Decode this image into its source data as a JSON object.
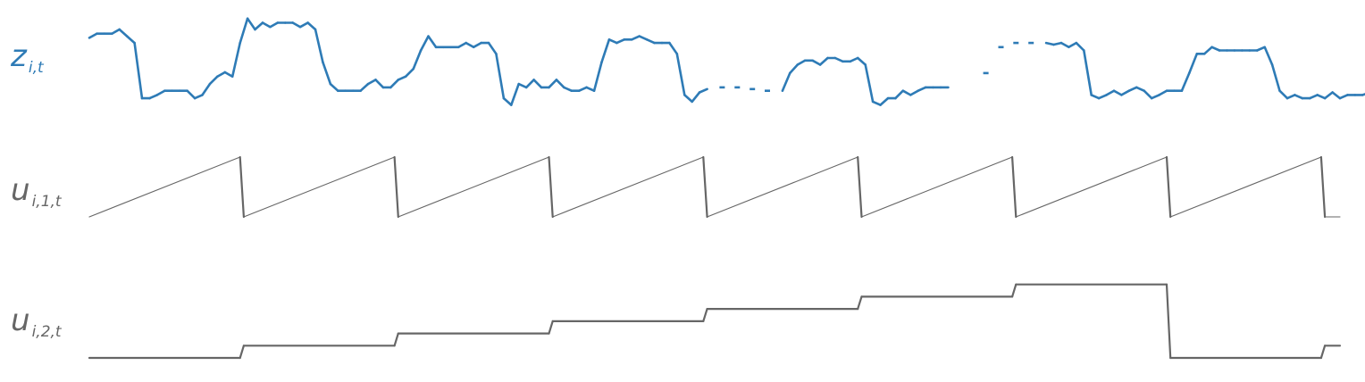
{
  "chart_data": [
    {
      "type": "line",
      "title": "",
      "xlabel": "",
      "ylabel": "",
      "grid": false,
      "legend": "none",
      "axes_visible": false,
      "color": "#2e7bb6",
      "label": {
        "main": "z",
        "sub": "i,t"
      },
      "xlim": [
        0,
        166
      ],
      "ylim": [
        0,
        1
      ],
      "y": [
        0.74,
        0.79,
        0.79,
        0.79,
        0.84,
        0.76,
        0.68,
        0.02,
        0.02,
        0.06,
        0.11,
        0.11,
        0.11,
        0.11,
        0.02,
        0.06,
        0.19,
        0.28,
        0.33,
        0.28,
        0.68,
        0.97,
        0.84,
        0.92,
        0.87,
        0.92,
        0.92,
        0.92,
        0.87,
        0.92,
        0.84,
        0.45,
        0.19,
        0.11,
        0.11,
        0.11,
        0.11,
        0.19,
        0.24,
        0.15,
        0.15,
        0.24,
        0.28,
        0.37,
        0.59,
        0.76,
        0.63,
        0.63,
        0.63,
        0.63,
        0.68,
        0.63,
        0.68,
        0.68,
        0.55,
        0.02,
        -0.06,
        0.19,
        0.15,
        0.24,
        0.15,
        0.15,
        0.24,
        0.15,
        0.11,
        0.11,
        0.15,
        0.11,
        0.45,
        0.72,
        0.68,
        0.72,
        0.72,
        0.76,
        0.72,
        0.68,
        0.68,
        0.68,
        0.55,
        0.06,
        -0.02,
        0.09,
        0.13,
        null,
        0.15,
        null,
        0.15,
        null,
        0.13,
        null,
        0.11,
        null,
        0.11,
        0.32,
        0.42,
        0.47,
        0.47,
        0.42,
        0.5,
        0.5,
        0.46,
        0.46,
        0.5,
        0.42,
        -0.02,
        -0.06,
        0.02,
        0.02,
        0.11,
        0.06,
        0.11,
        0.15,
        0.15,
        0.15,
        0.15,
        null,
        null,
        null,
        null,
        0.32,
        null,
        0.63,
        null,
        0.68,
        null,
        0.68,
        null,
        0.68,
        0.66,
        0.68,
        0.63,
        0.68,
        0.59,
        0.06,
        0.02,
        0.06,
        0.11,
        0.06,
        0.11,
        0.15,
        0.11,
        0.02,
        0.06,
        0.11,
        0.11,
        0.11,
        0.32,
        0.55,
        0.55,
        0.63,
        0.59,
        0.59,
        0.59,
        0.59,
        0.59,
        0.59,
        0.63,
        0.42,
        0.11,
        0.02,
        0.06,
        0.02,
        0.02,
        0.06,
        0.02,
        0.09,
        0.02,
        0.06,
        0.06,
        0.06,
        0.09,
        0.42,
        0.63,
        0.55,
        0.58,
        0.66,
        0.55,
        0.63,
        0.55,
        0.66,
        0.59,
        0.38,
        0.03,
        0.02,
        0.08,
        0.16,
        0.19,
        0.12,
        0.19,
        0.19,
        0.15,
        0.08,
        0.16,
        0.33,
        0.15,
        0.33,
        0.66,
        0.58,
        0.58,
        0.62
      ]
    },
    {
      "type": "line",
      "title": "",
      "xlabel": "",
      "ylabel": "",
      "grid": false,
      "legend": "none",
      "axes_visible": false,
      "color": "#666666",
      "label": {
        "main": "u",
        "sub": "i,1,t"
      },
      "xlim": [
        0,
        166
      ],
      "ylim": [
        0,
        1
      ],
      "x": [
        0,
        20,
        20.5,
        40.5,
        41,
        61,
        61.5,
        81.5,
        82,
        102,
        102.5,
        122.5,
        123,
        143,
        143.5,
        163.5,
        164,
        166
      ],
      "y": [
        0,
        1,
        0,
        1,
        0,
        1,
        0,
        1,
        0,
        1,
        0,
        1,
        0,
        1,
        0,
        1,
        0,
        0
      ]
    },
    {
      "type": "line",
      "title": "",
      "xlabel": "",
      "ylabel": "",
      "grid": false,
      "legend": "none",
      "axes_visible": false,
      "color": "#666666",
      "label": {
        "main": "u",
        "sub": "i,2,t"
      },
      "xlim": [
        0,
        166
      ],
      "ylim": [
        0,
        7
      ],
      "x": [
        0,
        20,
        20.5,
        40.5,
        41,
        61,
        61.5,
        81.5,
        82,
        102,
        102.5,
        122.5,
        123,
        143,
        143.5,
        163.5,
        164,
        166
      ],
      "y": [
        0,
        0,
        1,
        1,
        2,
        2,
        3,
        3,
        4,
        4,
        5,
        5,
        6,
        6,
        0,
        0,
        1,
        1
      ]
    }
  ]
}
